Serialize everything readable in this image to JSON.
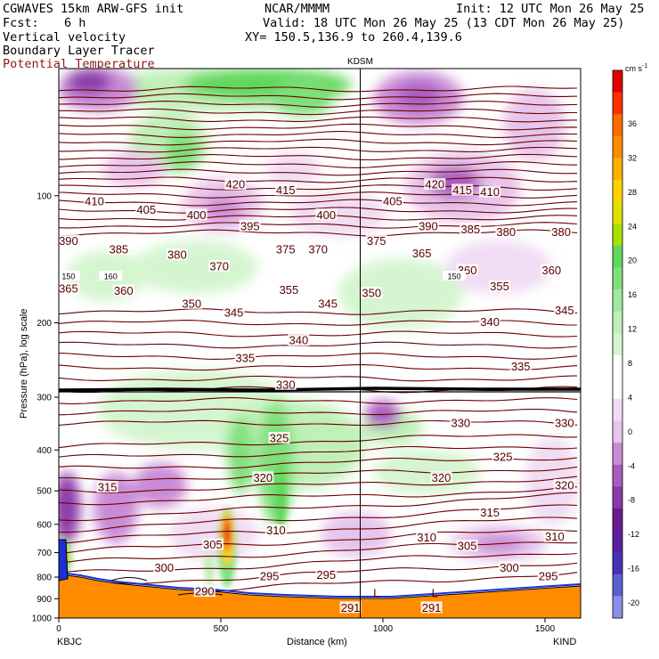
{
  "header": {
    "model": "CGWAVES 15km ARW-GFS init",
    "center": "NCAR/MMMM",
    "init": "Init: 12 UTC Mon 26 May 25",
    "fcst_label": "Fcst:",
    "fcst_value": "6 h",
    "valid": "Valid: 18 UTC Mon 26 May 25 (13 CDT Mon 26 May 25)",
    "field1": "Vertical velocity",
    "xy": "XY= 150.5,136.9 to 260.4,139.6",
    "field2": "Boundary Layer Tracer",
    "field3": "Potential Temperature"
  },
  "colors": {
    "theta": "#6b0000",
    "terrain": "#ff8c00",
    "tracer": "#000000",
    "accent_label": "#8b1a1a"
  },
  "chart_data": {
    "type": "heatmap",
    "xlabel": "Distance (km)",
    "ylabel": "Pressure (hPa), log scale",
    "x_ticks": [
      0,
      500,
      1000,
      1500
    ],
    "y_ticks": [
      100,
      200,
      300,
      400,
      500,
      600,
      700,
      800,
      900,
      1000
    ],
    "y_scale": "log",
    "xlim": [
      0,
      1610
    ],
    "ylim": [
      1000,
      50
    ],
    "left_station": "KBJC",
    "right_station": "KIND",
    "marker_station": "KDSM",
    "marker_x": 930,
    "colorbar": {
      "units": "cm s",
      "units_exp": "-1",
      "labels": [
        36,
        32,
        28,
        24,
        20,
        16,
        12,
        8,
        4,
        0,
        -4,
        -8,
        -12,
        -16,
        -20
      ]
    },
    "theta_labels": [
      {
        "v": "410",
        "x": 110,
        "p": 103
      },
      {
        "v": "405",
        "x": 270,
        "p": 108
      },
      {
        "v": "400",
        "x": 425,
        "p": 111
      },
      {
        "v": "420",
        "x": 545,
        "p": 94
      },
      {
        "v": "415",
        "x": 700,
        "p": 97
      },
      {
        "v": "395",
        "x": 590,
        "p": 118
      },
      {
        "v": "400",
        "x": 825,
        "p": 111
      },
      {
        "v": "405",
        "x": 1030,
        "p": 103
      },
      {
        "v": "420",
        "x": 1160,
        "p": 94
      },
      {
        "v": "415",
        "x": 1245,
        "p": 97
      },
      {
        "v": "410",
        "x": 1330,
        "p": 98
      },
      {
        "v": "390",
        "x": 30,
        "p": 128
      },
      {
        "v": "385",
        "x": 185,
        "p": 134
      },
      {
        "v": "380",
        "x": 365,
        "p": 138
      },
      {
        "v": "375",
        "x": 700,
        "p": 134
      },
      {
        "v": "370",
        "x": 800,
        "p": 134
      },
      {
        "v": "375",
        "x": 980,
        "p": 128
      },
      {
        "v": "390",
        "x": 1140,
        "p": 118
      },
      {
        "v": "385",
        "x": 1270,
        "p": 120
      },
      {
        "v": "380",
        "x": 1380,
        "p": 122
      },
      {
        "v": "380",
        "x": 1550,
        "p": 122
      },
      {
        "v": "365",
        "x": 1120,
        "p": 137
      },
      {
        "v": "370",
        "x": 495,
        "p": 147
      },
      {
        "v": "360",
        "x": 1260,
        "p": 150
      },
      {
        "v": "360",
        "x": 1520,
        "p": 150
      },
      {
        "v": "365",
        "x": 30,
        "p": 166
      },
      {
        "v": "360",
        "x": 200,
        "p": 168
      },
      {
        "v": "350",
        "x": 410,
        "p": 180
      },
      {
        "v": "345",
        "x": 540,
        "p": 189
      },
      {
        "v": "355",
        "x": 710,
        "p": 167
      },
      {
        "v": "345",
        "x": 830,
        "p": 180
      },
      {
        "v": "350",
        "x": 965,
        "p": 170
      },
      {
        "v": "355",
        "x": 1360,
        "p": 164
      },
      {
        "v": "340",
        "x": 1330,
        "p": 199
      },
      {
        "v": "345",
        "x": 1560,
        "p": 187
      },
      {
        "v": "340",
        "x": 740,
        "p": 220
      },
      {
        "v": "335",
        "x": 575,
        "p": 242
      },
      {
        "v": "335",
        "x": 1425,
        "p": 254
      },
      {
        "v": "330",
        "x": 700,
        "p": 280
      },
      {
        "v": "330",
        "x": 1240,
        "p": 345
      },
      {
        "v": "330",
        "x": 1560,
        "p": 345
      },
      {
        "v": "325",
        "x": 680,
        "p": 375
      },
      {
        "v": "325",
        "x": 1370,
        "p": 415
      },
      {
        "v": "320",
        "x": 630,
        "p": 465
      },
      {
        "v": "320",
        "x": 1180,
        "p": 465
      },
      {
        "v": "320",
        "x": 1560,
        "p": 485
      },
      {
        "v": "315",
        "x": 150,
        "p": 490
      },
      {
        "v": "315",
        "x": 1330,
        "p": 562
      },
      {
        "v": "310",
        "x": 670,
        "p": 620
      },
      {
        "v": "310",
        "x": 1135,
        "p": 645
      },
      {
        "v": "310",
        "x": 1530,
        "p": 642
      },
      {
        "v": "305",
        "x": 475,
        "p": 670
      },
      {
        "v": "305",
        "x": 1260,
        "p": 675
      },
      {
        "v": "300",
        "x": 325,
        "p": 760
      },
      {
        "v": "300",
        "x": 1390,
        "p": 760
      },
      {
        "v": "295",
        "x": 650,
        "p": 795
      },
      {
        "v": "295",
        "x": 825,
        "p": 790
      },
      {
        "v": "295",
        "x": 1510,
        "p": 795
      },
      {
        "v": "290",
        "x": 450,
        "p": 865
      },
      {
        "v": "291",
        "x": 900,
        "p": 945
      },
      {
        "v": "291",
        "x": 1150,
        "p": 945
      }
    ],
    "tracer_labels": [
      {
        "v": "150",
        "x": 30,
        "p": 155
      },
      {
        "v": "160",
        "x": 160,
        "p": 155
      },
      {
        "v": "150",
        "x": 1220,
        "p": 155
      }
    ],
    "low_markers": [
      {
        "v": "L",
        "x": 980,
        "p": 875
      },
      {
        "v": "L",
        "x": 1160,
        "p": 875
      }
    ]
  }
}
